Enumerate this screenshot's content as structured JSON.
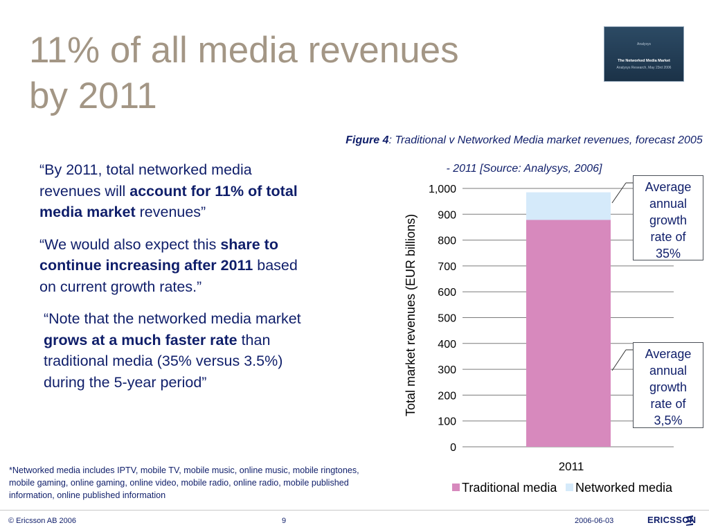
{
  "slide": {
    "title_line1": "11% of all media revenues",
    "title_line2": "by 2011"
  },
  "thumbnail": {
    "line1": "Analysys",
    "line2": "The Networked Media Market",
    "line3": "Analysys Research, May 23rd 2006"
  },
  "figure_caption": {
    "label": "Figure 4",
    "text": ": Traditional v Networked Media market revenues, forecast 2005 - 2011 [Source: Analysys, 2006]"
  },
  "quotes": {
    "q1_a": "“By 2011, total networked media revenues will ",
    "q1_b": "account for 11% of total media market",
    "q1_c": " revenues”",
    "q2_a": "“We would also expect this ",
    "q2_b": "share to continue increasing after 2011",
    "q2_c": " based on current growth rates.”",
    "q3_a": "“Note that the networked media market ",
    "q3_b": "grows at a much faster rate",
    "q3_c": " than traditional media (35% versus 3.5%) during the 5-year period”"
  },
  "footnote": "*Networked media includes IPTV, mobile TV, mobile music, online music, mobile ringtones, mobile gaming, online gaming, online video, mobile radio, online radio, mobile published information, online published information",
  "callouts": {
    "top": [
      "Average",
      "annual",
      "growth",
      "rate of",
      "35%"
    ],
    "bottom": [
      "Average",
      "annual",
      "growth",
      "rate of",
      "3,5%"
    ]
  },
  "chart_data": {
    "type": "bar",
    "stacked": true,
    "categories": [
      "2011"
    ],
    "series": [
      {
        "name": "Traditional media",
        "values": [
          878
        ],
        "color": "#d789bd"
      },
      {
        "name": "Networked media",
        "values": [
          107
        ],
        "color": "#d5eafa"
      }
    ],
    "ylabel": "Total market revenues (EUR billions)",
    "ylim": [
      0,
      1000
    ],
    "yticks": [
      0,
      100,
      200,
      300,
      400,
      500,
      600,
      700,
      800,
      900,
      1000
    ],
    "ytick_labels": [
      "0",
      "100",
      "200",
      "300",
      "400",
      "500",
      "600",
      "700",
      "800",
      "900",
      "1,000"
    ],
    "grid": true,
    "legend": "bottom"
  },
  "footer": {
    "copyright": "© Ericsson AB 2006",
    "page": "9",
    "date": "2006-06-03",
    "logo": "ERICSSON"
  }
}
